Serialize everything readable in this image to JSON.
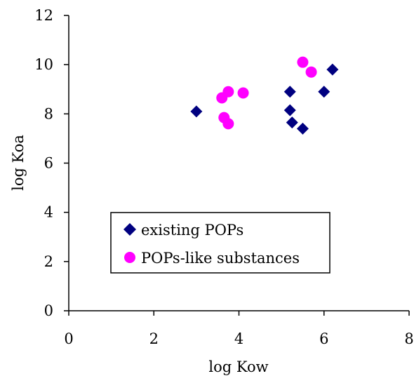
{
  "chart_data": {
    "type": "scatter",
    "title": "",
    "xlabel": "log Kow",
    "ylabel": "log Koa",
    "xlim": [
      0,
      8
    ],
    "ylim": [
      0,
      12
    ],
    "x_ticks": [
      "0",
      "2",
      "4",
      "6",
      "8"
    ],
    "y_ticks": [
      "0",
      "2",
      "4",
      "6",
      "8",
      "10",
      "12"
    ],
    "grid": false,
    "legend_position": "lower-left",
    "series": [
      {
        "name": "existing POPs",
        "marker": "diamond",
        "color": "#000080",
        "points": [
          {
            "x": 3.0,
            "y": 8.1
          },
          {
            "x": 5.2,
            "y": 8.9
          },
          {
            "x": 5.2,
            "y": 8.15
          },
          {
            "x": 5.25,
            "y": 7.65
          },
          {
            "x": 5.5,
            "y": 7.4
          },
          {
            "x": 6.0,
            "y": 8.9
          },
          {
            "x": 6.2,
            "y": 9.8
          }
        ]
      },
      {
        "name": "POPs-like substances",
        "marker": "circle",
        "color": "#ff00ff",
        "points": [
          {
            "x": 3.6,
            "y": 8.65
          },
          {
            "x": 3.75,
            "y": 8.9
          },
          {
            "x": 4.1,
            "y": 8.85
          },
          {
            "x": 3.65,
            "y": 7.85
          },
          {
            "x": 3.75,
            "y": 7.6
          },
          {
            "x": 5.5,
            "y": 10.1
          },
          {
            "x": 5.7,
            "y": 9.7
          }
        ]
      }
    ]
  }
}
